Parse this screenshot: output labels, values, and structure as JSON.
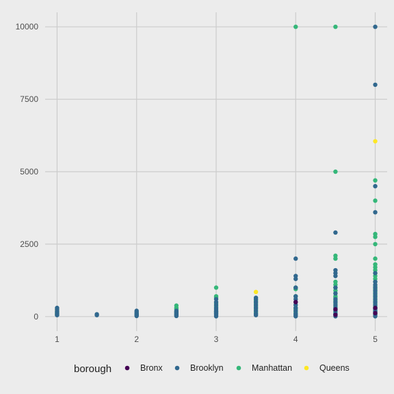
{
  "chart_data": {
    "type": "scatter",
    "title": "",
    "xlabel": "",
    "ylabel": "",
    "xlim": [
      0.85,
      5.15
    ],
    "ylim": [
      -500,
      10500
    ],
    "x_ticks": [
      {
        "value": 1,
        "label": "1"
      },
      {
        "value": 2,
        "label": "2"
      },
      {
        "value": 3,
        "label": "3"
      },
      {
        "value": 4,
        "label": "4"
      },
      {
        "value": 5,
        "label": "5"
      }
    ],
    "y_ticks": [
      {
        "value": 0,
        "label": "0"
      },
      {
        "value": 2500,
        "label": "2500"
      },
      {
        "value": 5000,
        "label": "5000"
      },
      {
        "value": 7500,
        "label": "7500"
      },
      {
        "value": 10000,
        "label": "10000"
      }
    ],
    "legend": {
      "title": "borough",
      "position": "bottom",
      "items": [
        {
          "name": "Bronx",
          "color": "#440154"
        },
        {
          "name": "Brooklyn",
          "color": "#31688e"
        },
        {
          "name": "Manhattan",
          "color": "#35b779"
        },
        {
          "name": "Queens",
          "color": "#fde725"
        }
      ]
    },
    "series": [
      {
        "name": "Bronx",
        "color": "#440154",
        "points": [
          [
            4,
            500
          ],
          [
            4.5,
            250
          ],
          [
            5,
            300
          ],
          [
            5,
            120
          ],
          [
            4.5,
            60
          ]
        ]
      },
      {
        "name": "Brooklyn",
        "color": "#31688e",
        "points": [
          [
            1,
            300
          ],
          [
            1,
            250
          ],
          [
            1,
            200
          ],
          [
            1,
            150
          ],
          [
            1,
            100
          ],
          [
            1,
            50
          ],
          [
            1.5,
            80
          ],
          [
            1.5,
            50
          ],
          [
            2,
            200
          ],
          [
            2,
            150
          ],
          [
            2,
            100
          ],
          [
            2,
            50
          ],
          [
            2,
            20
          ],
          [
            2.5,
            200
          ],
          [
            2.5,
            150
          ],
          [
            2.5,
            100
          ],
          [
            2.5,
            50
          ],
          [
            2.5,
            20
          ],
          [
            3,
            600
          ],
          [
            3,
            500
          ],
          [
            3,
            400
          ],
          [
            3,
            300
          ],
          [
            3,
            250
          ],
          [
            3,
            200
          ],
          [
            3,
            150
          ],
          [
            3,
            100
          ],
          [
            3,
            50
          ],
          [
            3,
            10
          ],
          [
            3.5,
            650
          ],
          [
            3.5,
            600
          ],
          [
            3.5,
            500
          ],
          [
            3.5,
            400
          ],
          [
            3.5,
            300
          ],
          [
            3.5,
            200
          ],
          [
            3.5,
            100
          ],
          [
            3.5,
            50
          ],
          [
            4,
            2000
          ],
          [
            4,
            1400
          ],
          [
            4,
            1300
          ],
          [
            4,
            1000
          ],
          [
            4,
            700
          ],
          [
            4,
            600
          ],
          [
            4,
            500
          ],
          [
            4,
            400
          ],
          [
            4,
            300
          ],
          [
            4,
            200
          ],
          [
            4,
            100
          ],
          [
            4,
            50
          ],
          [
            4,
            10
          ],
          [
            4.5,
            2900
          ],
          [
            4.5,
            1600
          ],
          [
            4.5,
            1500
          ],
          [
            4.5,
            1400
          ],
          [
            4.5,
            1000
          ],
          [
            4.5,
            800
          ],
          [
            4.5,
            600
          ],
          [
            4.5,
            500
          ],
          [
            4.5,
            400
          ],
          [
            4.5,
            300
          ],
          [
            4.5,
            200
          ],
          [
            4.5,
            100
          ],
          [
            4.5,
            50
          ],
          [
            4.5,
            10
          ],
          [
            5,
            10000
          ],
          [
            5,
            8000
          ],
          [
            5,
            4500
          ],
          [
            5,
            3600
          ],
          [
            5,
            1500
          ],
          [
            5,
            1200
          ],
          [
            5,
            1100
          ],
          [
            5,
            1000
          ],
          [
            5,
            900
          ],
          [
            5,
            800
          ],
          [
            5,
            700
          ],
          [
            5,
            600
          ],
          [
            5,
            500
          ],
          [
            5,
            400
          ],
          [
            5,
            300
          ],
          [
            5,
            250
          ],
          [
            5,
            200
          ],
          [
            5,
            150
          ],
          [
            5,
            100
          ],
          [
            5,
            50
          ],
          [
            5,
            10
          ]
        ]
      },
      {
        "name": "Manhattan",
        "color": "#35b779",
        "points": [
          [
            1,
            150
          ],
          [
            1,
            100
          ],
          [
            1,
            60
          ],
          [
            2,
            100
          ],
          [
            2,
            60
          ],
          [
            2.5,
            380
          ],
          [
            2.5,
            300
          ],
          [
            2.5,
            250
          ],
          [
            2.5,
            150
          ],
          [
            2.5,
            80
          ],
          [
            3,
            1000
          ],
          [
            3,
            700
          ],
          [
            3,
            650
          ],
          [
            3,
            450
          ],
          [
            3,
            350
          ],
          [
            3,
            180
          ],
          [
            3,
            120
          ],
          [
            3.5,
            550
          ],
          [
            3.5,
            450
          ],
          [
            3.5,
            350
          ],
          [
            3.5,
            250
          ],
          [
            3.5,
            150
          ],
          [
            4,
            10000
          ],
          [
            4,
            1000
          ],
          [
            4,
            950
          ],
          [
            4,
            700
          ],
          [
            4,
            400
          ],
          [
            4,
            300
          ],
          [
            4,
            250
          ],
          [
            4,
            150
          ],
          [
            4.5,
            10000
          ],
          [
            4.5,
            5000
          ],
          [
            4.5,
            2100
          ],
          [
            4.5,
            2000
          ],
          [
            4.5,
            1200
          ],
          [
            4.5,
            1100
          ],
          [
            4.5,
            1000
          ],
          [
            4.5,
            900
          ],
          [
            4.5,
            800
          ],
          [
            4.5,
            700
          ],
          [
            4.5,
            650
          ],
          [
            4.5,
            550
          ],
          [
            4.5,
            450
          ],
          [
            4.5,
            350
          ],
          [
            4.5,
            250
          ],
          [
            4.5,
            150
          ],
          [
            4.5,
            80
          ],
          [
            5,
            4700
          ],
          [
            5,
            4000
          ],
          [
            5,
            2850
          ],
          [
            5,
            2750
          ],
          [
            5,
            2500
          ],
          [
            5,
            2000
          ],
          [
            5,
            1800
          ],
          [
            5,
            1700
          ],
          [
            5,
            1600
          ],
          [
            5,
            1500
          ],
          [
            5,
            1400
          ],
          [
            5,
            1300
          ],
          [
            5,
            1200
          ],
          [
            5,
            1050
          ],
          [
            5,
            950
          ],
          [
            5,
            850
          ],
          [
            5,
            750
          ],
          [
            5,
            650
          ],
          [
            5,
            550
          ],
          [
            5,
            450
          ],
          [
            5,
            350
          ],
          [
            5,
            280
          ],
          [
            5,
            180
          ],
          [
            5,
            80
          ]
        ]
      },
      {
        "name": "Queens",
        "color": "#fde725",
        "points": [
          [
            1,
            250
          ],
          [
            1,
            200
          ],
          [
            1,
            100
          ],
          [
            3.5,
            850
          ],
          [
            5,
            6050
          ],
          [
            5,
            100
          ]
        ]
      }
    ]
  }
}
